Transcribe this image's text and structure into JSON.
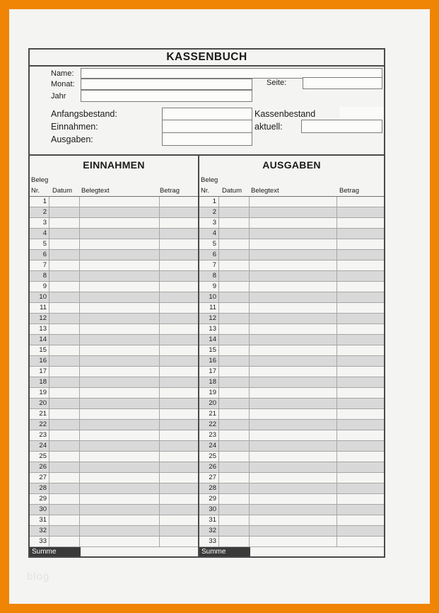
{
  "colors": {
    "frame_orange": "#F08505",
    "paper_background": "#F4F4F2",
    "row_shading_gray": "#D9D9D9",
    "summe_row_background": "#3A3A3A",
    "grid_dark": "#4A4A4A",
    "grid_light": "#A6A6A6"
  },
  "watermark": "blog",
  "form": {
    "title": "KASSENBUCH",
    "header": {
      "name_label": "Name:",
      "name_value": "",
      "monat_label": "Monat:",
      "monat_value": "",
      "jahr_label": "Jahr",
      "jahr_value": "",
      "seite_label": "Seite:",
      "seite_value": "",
      "anfangsbestand_label": "Anfangsbestand:",
      "anfangsbestand_value": "",
      "einnahmen_label": "Einnahmen:",
      "einnahmen_value": "",
      "ausgaben_label": "Ausgaben:",
      "ausgaben_value": "",
      "kassenbestand_label": "Kassenbestand",
      "aktuell_label": "aktuell:",
      "aktuell_value": ""
    },
    "table": {
      "beleg_label": "Beleg",
      "columns": [
        "Nr.",
        "Datum",
        "Belegtext",
        "Betrag"
      ],
      "column_keys": [
        "nr",
        "datum",
        "belegtext",
        "betrag"
      ],
      "row_numbers": [
        1,
        2,
        3,
        4,
        5,
        6,
        7,
        8,
        9,
        10,
        11,
        12,
        13,
        14,
        15,
        16,
        17,
        18,
        19,
        20,
        21,
        22,
        23,
        24,
        25,
        26,
        27,
        28,
        29,
        30,
        31,
        32,
        33
      ],
      "summe_label": "Summe",
      "sections": [
        {
          "id": "einnahmen",
          "title": "EINNAHMEN"
        },
        {
          "id": "ausgaben",
          "title": "AUSGABEN"
        }
      ]
    }
  }
}
